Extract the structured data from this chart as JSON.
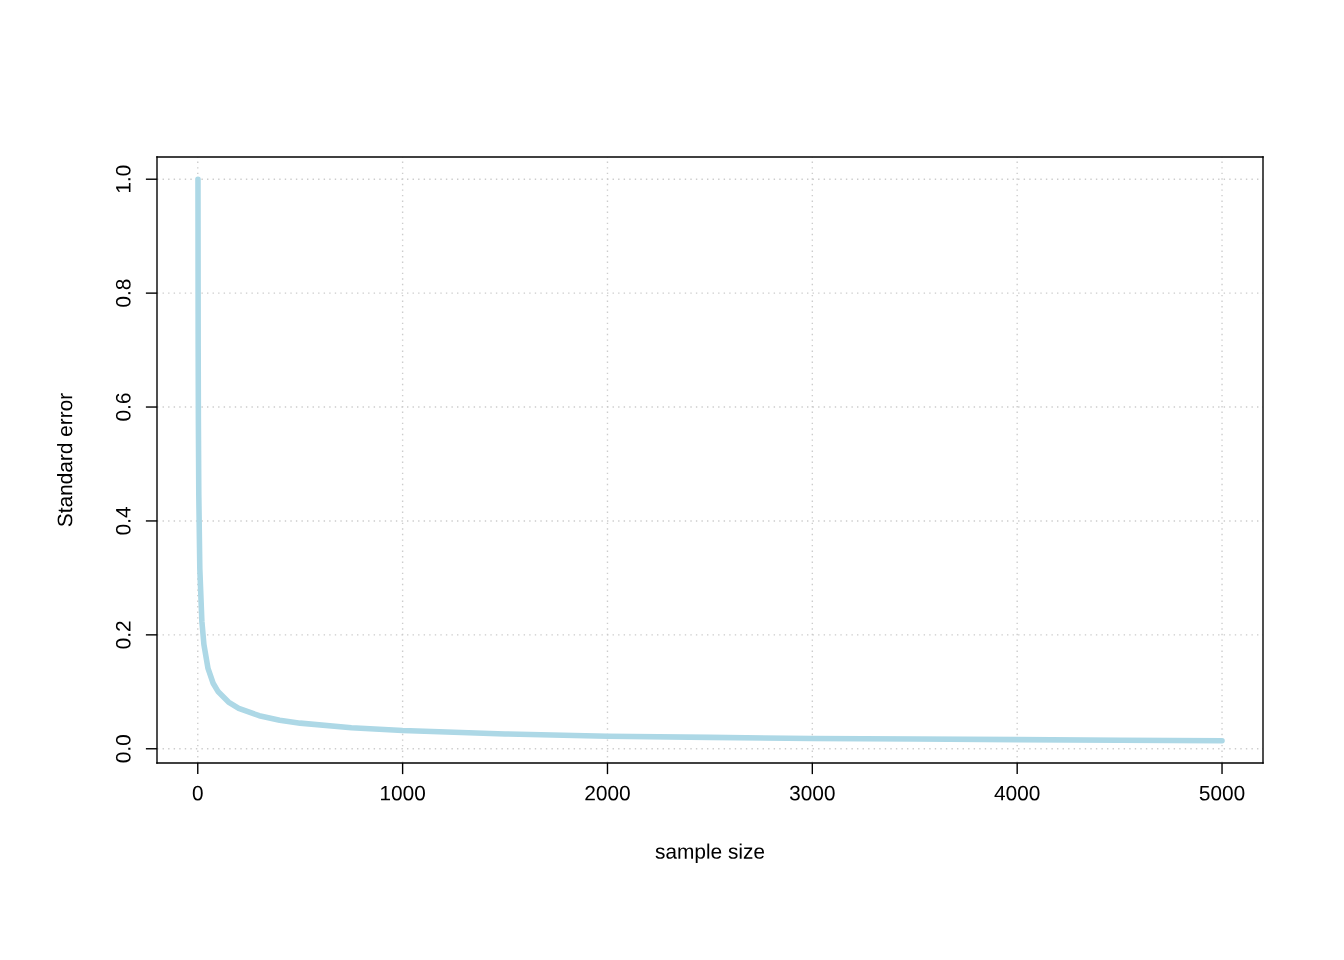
{
  "chart_data": {
    "type": "line",
    "xlabel": "sample size",
    "ylabel": "Standard error",
    "x": [
      1,
      2,
      3,
      5,
      10,
      20,
      30,
      50,
      75,
      100,
      150,
      200,
      300,
      400,
      500,
      750,
      1000,
      1500,
      2000,
      2500,
      3000,
      3500,
      4000,
      4500,
      5000
    ],
    "series": [
      {
        "color": "#add8e6",
        "values": [
          1.0,
          0.707,
          0.577,
          0.447,
          0.316,
          0.224,
          0.183,
          0.141,
          0.115,
          0.1,
          0.082,
          0.071,
          0.058,
          0.05,
          0.045,
          0.037,
          0.032,
          0.026,
          0.022,
          0.02,
          0.018,
          0.017,
          0.016,
          0.015,
          0.014
        ]
      }
    ],
    "xlim": [
      -199,
      5200
    ],
    "ylim": [
      -0.025,
      1.039
    ],
    "xticks": [
      0,
      1000,
      2000,
      3000,
      4000,
      5000
    ],
    "yticks": [
      {
        "value": 0,
        "label": "0.0"
      },
      {
        "value": 0.2,
        "label": "0.2"
      },
      {
        "value": 0.4,
        "label": "0.4"
      },
      {
        "value": 0.6,
        "label": "0.6"
      },
      {
        "value": 0.8,
        "label": "0.8"
      },
      {
        "value": 1,
        "label": "1.0"
      }
    ],
    "grid": true,
    "marker": "none",
    "line_style": "solid",
    "legend": false
  }
}
